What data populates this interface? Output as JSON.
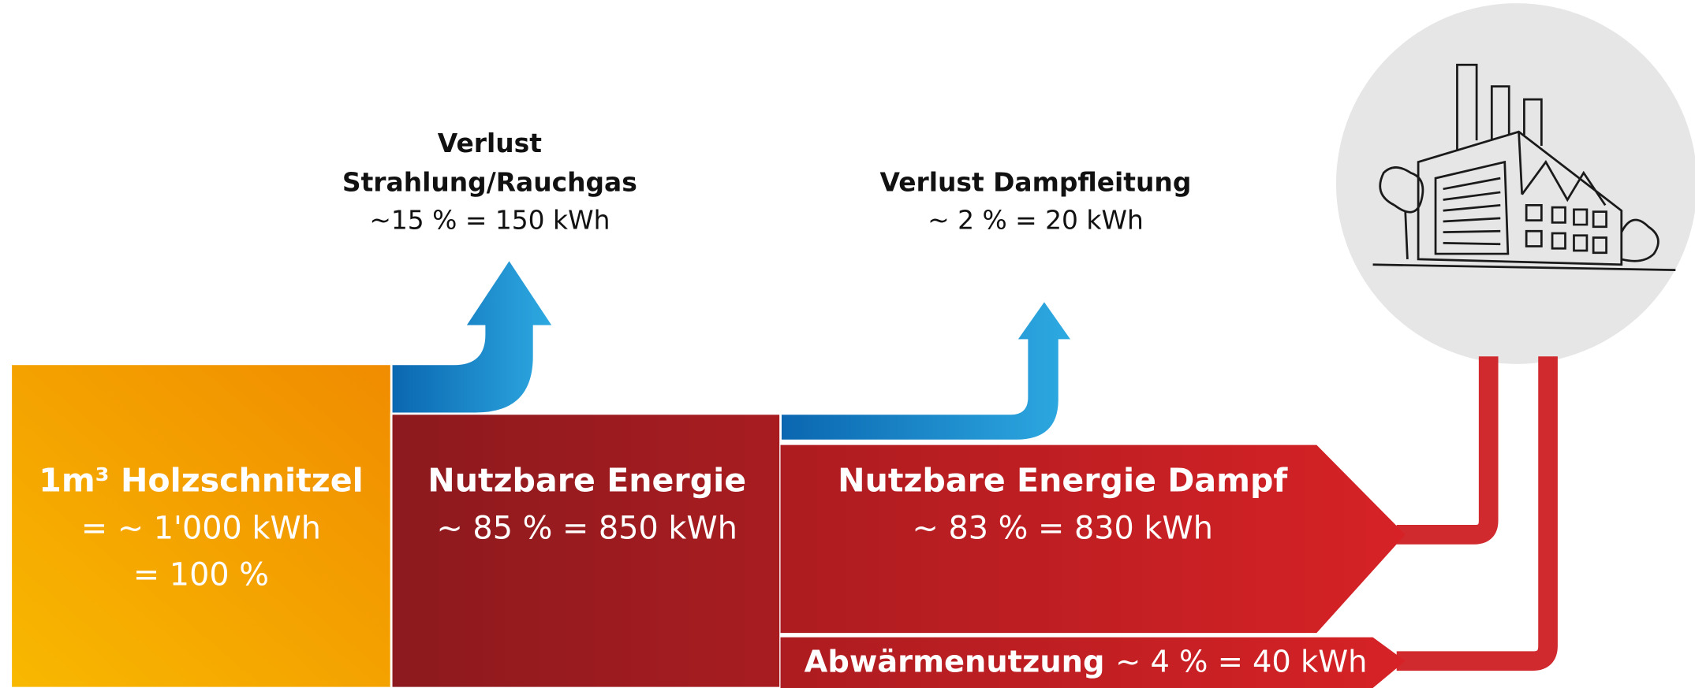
{
  "source": {
    "title": "1m³ Holzschnitzel",
    "lines": [
      "= ~ 1'000 kWh",
      "= 100 %"
    ]
  },
  "usable": {
    "title": "Nutzbare Energie",
    "value": "~ 85 % = 850 kWh"
  },
  "loss_flue": {
    "lines": [
      "Verlust",
      "Strahlung/Rauchgas"
    ],
    "value": "~15 % = 150 kWh"
  },
  "loss_steam": {
    "title": "Verlust Dampfleitung",
    "value": "~ 2 % = 20 kWh"
  },
  "steam": {
    "title": "Nutzbare Energie Dampf",
    "value": "~ 83 % = 830 kWh"
  },
  "waste_heat": {
    "title": "Abwärmenutzung",
    "value": "~ 4 % = 40 kWh"
  }
}
